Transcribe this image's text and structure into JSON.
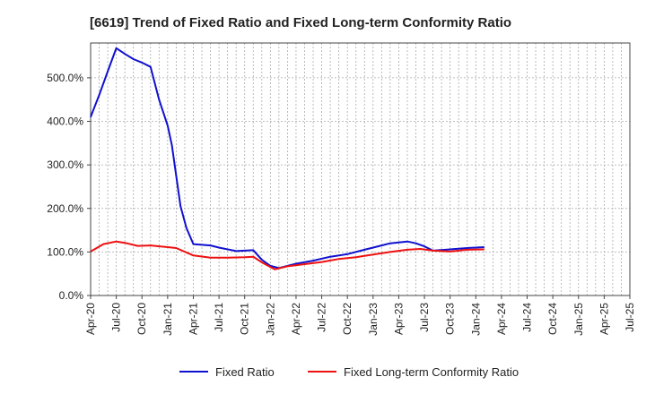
{
  "chart_data": {
    "type": "line",
    "title": "[6619]  Trend of Fixed Ratio and Fixed Long-term Conformity Ratio",
    "xlabel": "",
    "ylabel": "",
    "ylim": [
      0,
      580
    ],
    "y_ticks": [
      0,
      100,
      200,
      300,
      400,
      500
    ],
    "y_tick_labels": [
      "0.0%",
      "100.0%",
      "200.0%",
      "300.0%",
      "400.0%",
      "500.0%"
    ],
    "x_tick_labels": [
      "Apr-20",
      "Jul-20",
      "Oct-20",
      "Jan-21",
      "Apr-21",
      "Jul-21",
      "Oct-21",
      "Jan-22",
      "Apr-22",
      "Jul-22",
      "Oct-22",
      "Jan-23",
      "Apr-23",
      "Jul-23",
      "Oct-23",
      "Jan-24",
      "Apr-24",
      "Jul-24",
      "Oct-24",
      "Jan-25",
      "Apr-25",
      "Jul-25"
    ],
    "grid": true,
    "legend_position": "bottom",
    "series": [
      {
        "name": "Fixed Ratio",
        "color": "#1010d0",
        "points": [
          [
            0,
            410
          ],
          [
            1,
            460
          ],
          [
            2,
            515
          ],
          [
            3,
            568
          ],
          [
            4,
            555
          ],
          [
            5,
            543
          ],
          [
            6,
            535
          ],
          [
            7,
            525
          ],
          [
            8,
            450
          ],
          [
            9,
            390
          ],
          [
            9.5,
            345
          ],
          [
            10.5,
            205
          ],
          [
            11.2,
            155
          ],
          [
            12,
            118
          ],
          [
            14,
            115
          ],
          [
            15,
            110
          ],
          [
            17,
            102
          ],
          [
            19,
            104
          ],
          [
            20,
            82
          ],
          [
            21,
            68
          ],
          [
            22,
            63
          ],
          [
            24,
            73
          ],
          [
            26,
            80
          ],
          [
            28,
            89
          ],
          [
            30,
            95
          ],
          [
            32,
            105
          ],
          [
            34,
            115
          ],
          [
            35,
            120
          ],
          [
            37,
            124
          ],
          [
            38,
            120
          ],
          [
            39,
            113
          ],
          [
            40,
            103
          ],
          [
            42,
            106
          ],
          [
            44,
            109
          ],
          [
            46,
            111
          ]
        ]
      },
      {
        "name": "Fixed Long-term Conformity Ratio",
        "color": "#ee1010",
        "points": [
          [
            0,
            101
          ],
          [
            1.5,
            118
          ],
          [
            3,
            124
          ],
          [
            4,
            121
          ],
          [
            5.5,
            114
          ],
          [
            7,
            115
          ],
          [
            9,
            111
          ],
          [
            10,
            109
          ],
          [
            12,
            92
          ],
          [
            14,
            87
          ],
          [
            16,
            87
          ],
          [
            18,
            88
          ],
          [
            19,
            89
          ],
          [
            20,
            76
          ],
          [
            21.5,
            60
          ],
          [
            23,
            67
          ],
          [
            25,
            72
          ],
          [
            27,
            77
          ],
          [
            29,
            84
          ],
          [
            31,
            88
          ],
          [
            33,
            94
          ],
          [
            35,
            100
          ],
          [
            37,
            105
          ],
          [
            38.5,
            107
          ],
          [
            40,
            103
          ],
          [
            42,
            101
          ],
          [
            44,
            105
          ],
          [
            46,
            106
          ]
        ]
      }
    ]
  }
}
